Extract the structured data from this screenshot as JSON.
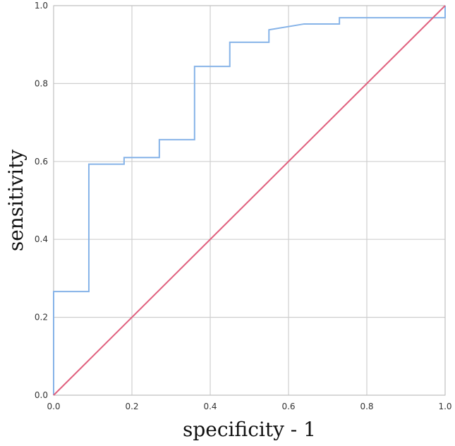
{
  "chart_data": {
    "type": "line",
    "title": "",
    "xlabel": "specificity - 1",
    "ylabel": "sensitivity",
    "xlim": [
      0,
      1
    ],
    "ylim": [
      0,
      1
    ],
    "grid": true,
    "x_ticks": [
      "0.0",
      "0.2",
      "0.4",
      "0.6",
      "0.8",
      "1.0"
    ],
    "y_ticks": [
      "0.0",
      "0.2",
      "0.4",
      "0.6",
      "0.8",
      "1.0"
    ],
    "series": [
      {
        "style": "step",
        "color": "#86b3e8",
        "x": [
          0,
          0,
          0.09,
          0.09,
          0.18,
          0.18,
          0.27,
          0.27,
          0.36,
          0.36,
          0.45,
          0.45,
          0.55,
          0.55,
          0.64,
          0.73,
          0.73,
          1.0,
          1.0
        ],
        "y": [
          0,
          0.266,
          0.266,
          0.593,
          0.593,
          0.61,
          0.61,
          0.656,
          0.656,
          0.844,
          0.844,
          0.906,
          0.906,
          0.938,
          0.953,
          0.953,
          0.969,
          0.969,
          1.0
        ]
      },
      {
        "style": "line",
        "color": "#e0607e",
        "x": [
          0,
          1
        ],
        "y": [
          0,
          1
        ]
      }
    ]
  }
}
